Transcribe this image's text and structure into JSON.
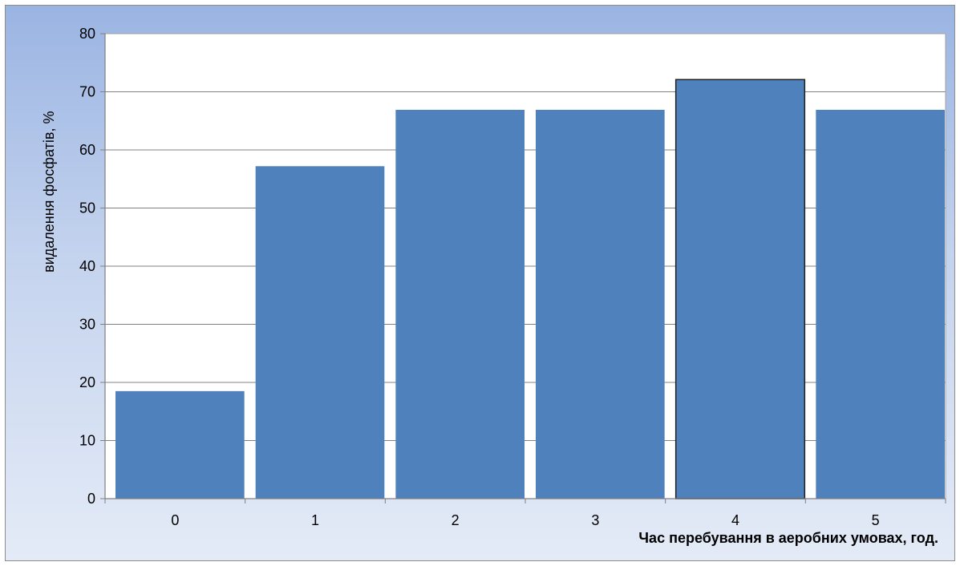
{
  "chart_data": {
    "type": "bar",
    "categories": [
      "0",
      "1",
      "2",
      "3",
      "4",
      "5"
    ],
    "values": [
      18.5,
      57.2,
      66.9,
      66.9,
      72.1,
      66.9
    ],
    "title": "",
    "xlabel": "Час перебування в аеробних умовах, год.",
    "ylabel": "видалення фосфатів,  %",
    "ylim": [
      0,
      80
    ],
    "yticks": [
      "0",
      "10",
      "20",
      "30",
      "40",
      "50",
      "60",
      "70",
      "80"
    ],
    "grid": true,
    "highlighted_category": "4",
    "colors": {
      "bar": "#4f81bd",
      "bar_outline_highlight": "#1f1f1f",
      "grid": "#808080",
      "plot_bg": "#ffffff"
    }
  }
}
